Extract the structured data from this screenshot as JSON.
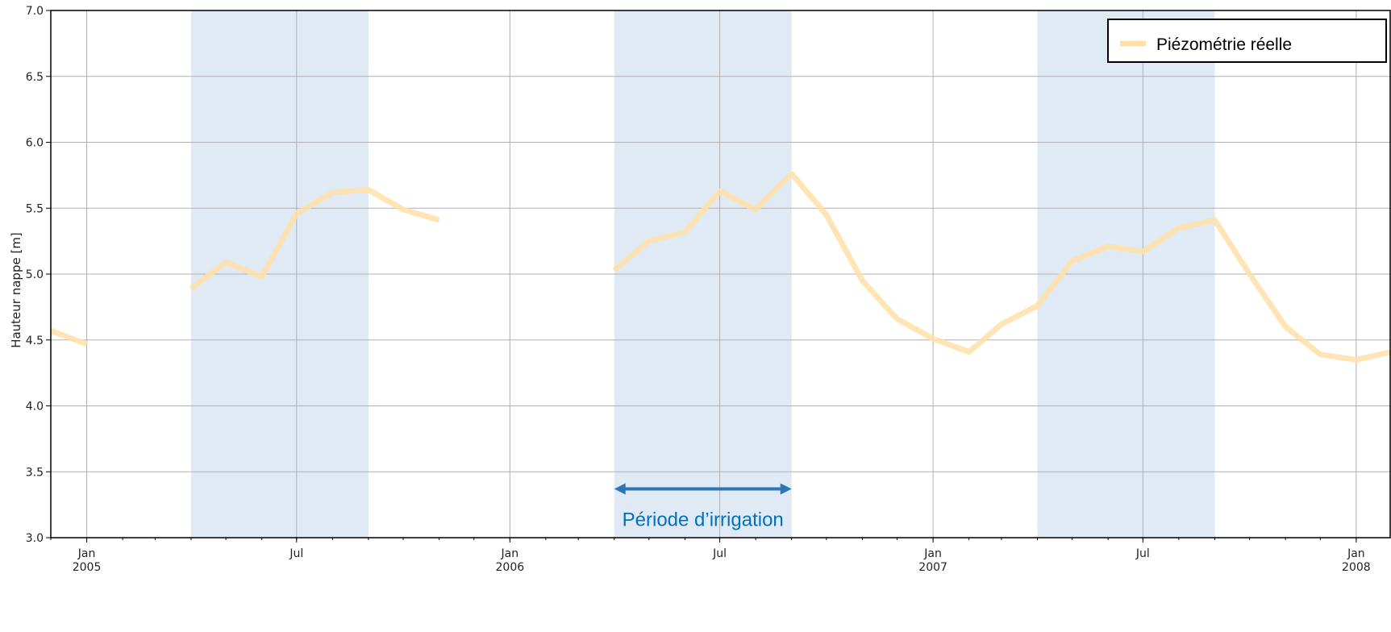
{
  "chart_data": {
    "type": "line",
    "title": "",
    "ylabel": "Hauteur nappe [m]",
    "xlabel": "",
    "ylim": [
      3.0,
      7.0
    ],
    "yticks": [
      "3.0",
      "3.5",
      "4.0",
      "4.5",
      "5.0",
      "5.5",
      "6.0",
      "6.5",
      "7.0"
    ],
    "xlim": [
      "2004-12-01",
      "2008-01-31"
    ],
    "xticks": [
      {
        "date": "2005-01-01",
        "label": "Jan",
        "sublabel": "2005"
      },
      {
        "date": "2005-07-01",
        "label": "Jul",
        "sublabel": ""
      },
      {
        "date": "2006-01-01",
        "label": "Jan",
        "sublabel": "2006"
      },
      {
        "date": "2006-07-01",
        "label": "Jul",
        "sublabel": ""
      },
      {
        "date": "2007-01-01",
        "label": "Jan",
        "sublabel": "2007"
      },
      {
        "date": "2007-07-01",
        "label": "Jul",
        "sublabel": ""
      },
      {
        "date": "2008-01-01",
        "label": "Jan",
        "sublabel": "2008"
      }
    ],
    "grid": true,
    "legend": {
      "position": "top-right",
      "label": "Piézométrie réelle"
    },
    "series": [
      {
        "name": "Piézométrie réelle",
        "color": "#ffe0a8",
        "segments": [
          [
            [
              "2004-12-01",
              4.57
            ],
            [
              "2005-01-01",
              4.47
            ]
          ],
          [
            [
              "2005-04-01",
              4.89
            ],
            [
              "2005-05-01",
              5.09
            ],
            [
              "2005-06-01",
              4.98
            ],
            [
              "2005-07-01",
              5.46
            ],
            [
              "2005-08-01",
              5.62
            ],
            [
              "2005-09-01",
              5.64
            ],
            [
              "2005-10-01",
              5.49
            ],
            [
              "2005-11-01",
              5.41
            ]
          ],
          [
            [
              "2006-04-01",
              5.03
            ],
            [
              "2006-05-01",
              5.25
            ],
            [
              "2006-06-01",
              5.32
            ],
            [
              "2006-07-01",
              5.63
            ],
            [
              "2006-08-01",
              5.49
            ],
            [
              "2006-09-01",
              5.76
            ],
            [
              "2006-10-01",
              5.45
            ],
            [
              "2006-11-01",
              4.95
            ],
            [
              "2006-12-01",
              4.66
            ],
            [
              "2007-01-01",
              4.51
            ],
            [
              "2007-02-01",
              4.41
            ],
            [
              "2007-03-01",
              4.62
            ],
            [
              "2007-04-01",
              4.76
            ],
            [
              "2007-05-01",
              5.1
            ],
            [
              "2007-06-01",
              5.21
            ],
            [
              "2007-07-01",
              5.17
            ],
            [
              "2007-08-01",
              5.35
            ],
            [
              "2007-09-01",
              5.41
            ],
            [
              "2007-10-01",
              5.0
            ],
            [
              "2007-11-01",
              4.6
            ],
            [
              "2007-12-01",
              4.39
            ],
            [
              "2008-01-01",
              4.35
            ],
            [
              "2008-01-31",
              4.41
            ]
          ]
        ]
      }
    ],
    "shaded_periods": [
      {
        "start": "2005-04-01",
        "end": "2005-09-01",
        "color": "#e0eaf5"
      },
      {
        "start": "2006-04-01",
        "end": "2006-09-01",
        "color": "#e0eaf5"
      },
      {
        "start": "2007-04-01",
        "end": "2007-09-01",
        "color": "#e0eaf5"
      }
    ],
    "annotations": [
      {
        "text": "Période d’irrigation",
        "start": "2006-04-01",
        "end": "2006-09-01",
        "y": 3.37,
        "color": "#2e75b6",
        "text_color": "#0070c0"
      }
    ]
  }
}
